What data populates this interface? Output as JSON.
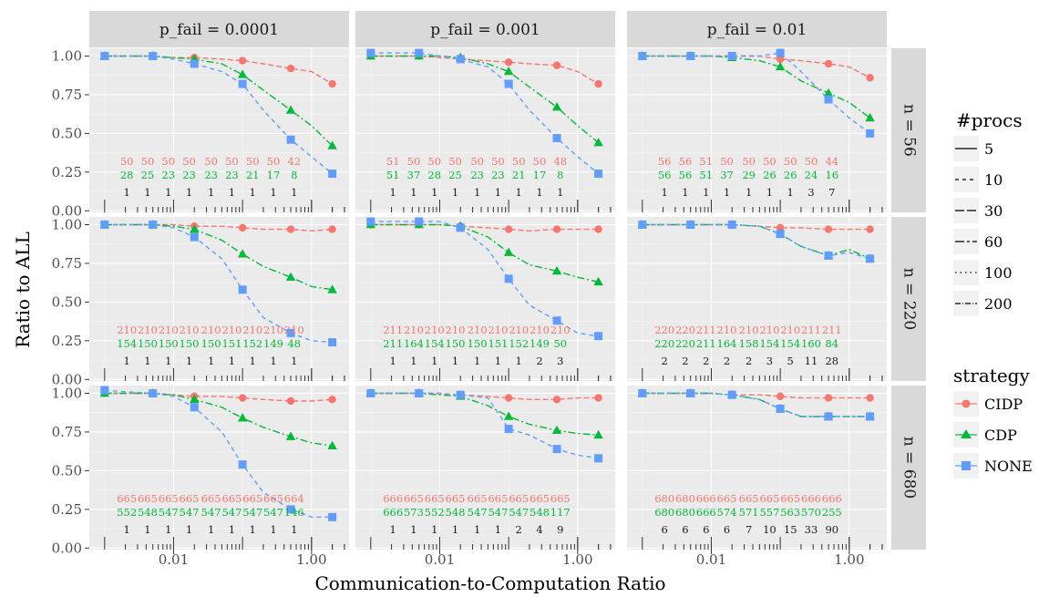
{
  "chart_data": {
    "type": "line",
    "title": "",
    "xlabel": "Communication-to-Computation Ratio",
    "ylabel": "Ratio to ALL",
    "x_scale": "log10",
    "x": [
      0.001,
      0.002,
      0.005,
      0.01,
      0.02,
      0.05,
      0.1,
      0.2,
      0.5,
      1,
      2
    ],
    "x_ticks": [
      {
        "value": 0.01,
        "label": "0.01"
      },
      {
        "value": 1,
        "label": "1.00"
      }
    ],
    "y_ticks": [
      "0.00",
      "0.25",
      "0.50",
      "0.75",
      "1.00"
    ],
    "ylim": [
      0,
      1.03
    ],
    "grid": true,
    "col_facets": [
      "p_fail = 0.0001",
      "p_fail = 0.001",
      "p_fail = 0.01"
    ],
    "row_facets": [
      "n = 56",
      "n = 220",
      "n = 680"
    ],
    "legend_procs": {
      "title": "#procs",
      "entries": [
        "5",
        "10",
        "30",
        "60",
        "100",
        "200"
      ]
    },
    "legend_strategy": {
      "title": "strategy",
      "entries": [
        {
          "name": "CIDP",
          "color": "#F8766D",
          "marker": "circle"
        },
        {
          "name": "CDP",
          "color": "#00BA38",
          "marker": "triangle"
        },
        {
          "name": "NONE",
          "color": "#619CFF",
          "marker": "square"
        }
      ]
    },
    "panels": [
      {
        "row": 0,
        "col": 0,
        "series": [
          {
            "name": "CIDP",
            "values": [
              1.0,
              1.0,
              1.0,
              0.99,
              0.99,
              0.98,
              0.97,
              0.95,
              0.92,
              0.9,
              0.82
            ]
          },
          {
            "name": "CDP",
            "values": [
              1.0,
              1.0,
              1.0,
              0.99,
              0.98,
              0.95,
              0.88,
              0.78,
              0.65,
              0.55,
              0.42
            ]
          },
          {
            "name": "NONE",
            "values": [
              1.0,
              1.0,
              1.0,
              0.98,
              0.95,
              0.9,
              0.82,
              0.65,
              0.46,
              0.35,
              0.24
            ]
          }
        ],
        "labels_cidp": [
          "50",
          "50",
          "50",
          "50",
          "50",
          "50",
          "50",
          "50",
          "42"
        ],
        "labels_cdp": [
          "28",
          "25",
          "23",
          "23",
          "23",
          "23",
          "21",
          "17",
          "8"
        ],
        "labels_none": [
          "1",
          "1",
          "1",
          "1",
          "1",
          "1",
          "1",
          "1",
          "1"
        ]
      },
      {
        "row": 0,
        "col": 1,
        "series": [
          {
            "name": "CIDP",
            "values": [
              1.0,
              1.0,
              1.0,
              0.99,
              0.98,
              0.97,
              0.96,
              0.95,
              0.94,
              0.9,
              0.82
            ]
          },
          {
            "name": "CDP",
            "values": [
              1.0,
              1.0,
              1.0,
              1.0,
              0.99,
              0.95,
              0.9,
              0.8,
              0.67,
              0.55,
              0.44
            ]
          },
          {
            "name": "NONE",
            "values": [
              1.02,
              1.02,
              1.02,
              1.0,
              0.98,
              0.93,
              0.82,
              0.65,
              0.47,
              0.35,
              0.24
            ]
          }
        ],
        "labels_cidp": [
          "51",
          "50",
          "50",
          "50",
          "50",
          "50",
          "50",
          "50",
          "48"
        ],
        "labels_cdp": [
          "51",
          "37",
          "28",
          "25",
          "23",
          "23",
          "21",
          "17",
          "8"
        ],
        "labels_none": [
          "1",
          "1",
          "1",
          "1",
          "1",
          "1",
          "1",
          "1",
          "1"
        ]
      },
      {
        "row": 0,
        "col": 2,
        "series": [
          {
            "name": "CIDP",
            "values": [
              1.0,
              1.0,
              1.0,
              1.0,
              1.0,
              1.0,
              0.98,
              0.97,
              0.95,
              0.93,
              0.86
            ]
          },
          {
            "name": "CDP",
            "values": [
              1.0,
              1.0,
              1.0,
              1.0,
              0.99,
              0.97,
              0.93,
              0.84,
              0.76,
              0.7,
              0.6
            ]
          },
          {
            "name": "NONE",
            "values": [
              1.0,
              1.0,
              1.0,
              1.0,
              1.0,
              1.0,
              1.02,
              0.9,
              0.72,
              0.6,
              0.5
            ]
          }
        ],
        "labels_cidp": [
          "56",
          "56",
          "51",
          "50",
          "50",
          "50",
          "50",
          "50",
          "44"
        ],
        "labels_cdp": [
          "56",
          "56",
          "51",
          "37",
          "29",
          "26",
          "26",
          "24",
          "16"
        ],
        "labels_none": [
          "1",
          "1",
          "1",
          "1",
          "1",
          "1",
          "1",
          "3",
          "7"
        ]
      },
      {
        "row": 1,
        "col": 0,
        "series": [
          {
            "name": "CIDP",
            "values": [
              1.0,
              1.0,
              1.0,
              1.0,
              0.99,
              0.99,
              0.98,
              0.97,
              0.97,
              0.96,
              0.97
            ]
          },
          {
            "name": "CDP",
            "values": [
              1.0,
              1.0,
              1.0,
              0.99,
              0.97,
              0.9,
              0.81,
              0.73,
              0.66,
              0.6,
              0.58
            ]
          },
          {
            "name": "NONE",
            "values": [
              1.0,
              1.0,
              1.0,
              0.98,
              0.92,
              0.78,
              0.58,
              0.4,
              0.3,
              0.25,
              0.24
            ]
          }
        ],
        "labels_cidp": [
          "210",
          "210",
          "210",
          "210",
          "210",
          "210",
          "210",
          "210",
          "210"
        ],
        "labels_cdp": [
          "154",
          "150",
          "150",
          "150",
          "150",
          "151",
          "152",
          "149",
          "48"
        ],
        "labels_none": [
          "1",
          "1",
          "1",
          "1",
          "1",
          "1",
          "1",
          "1",
          "1"
        ]
      },
      {
        "row": 1,
        "col": 1,
        "series": [
          {
            "name": "CIDP",
            "values": [
              1.0,
              1.0,
              1.0,
              1.0,
              0.99,
              0.98,
              0.97,
              0.96,
              0.97,
              0.97,
              0.97
            ]
          },
          {
            "name": "CDP",
            "values": [
              1.0,
              1.0,
              1.0,
              1.0,
              0.99,
              0.92,
              0.82,
              0.74,
              0.7,
              0.66,
              0.63
            ]
          },
          {
            "name": "NONE",
            "values": [
              1.02,
              1.02,
              1.02,
              1.02,
              0.98,
              0.84,
              0.65,
              0.48,
              0.38,
              0.3,
              0.28
            ]
          }
        ],
        "labels_cidp": [
          "211",
          "210",
          "210",
          "210",
          "210",
          "210",
          "210",
          "210",
          "210"
        ],
        "labels_cdp": [
          "211",
          "164",
          "154",
          "150",
          "150",
          "151",
          "152",
          "149",
          "50"
        ],
        "labels_none": [
          "1",
          "1",
          "1",
          "1",
          "1",
          "1",
          "1",
          "2",
          "3"
        ]
      },
      {
        "row": 1,
        "col": 2,
        "series": [
          {
            "name": "CIDP",
            "values": [
              1.0,
              1.0,
              1.0,
              1.0,
              1.0,
              0.99,
              0.98,
              0.98,
              0.97,
              0.97,
              0.97
            ]
          },
          {
            "name": "CDP",
            "values": [
              1.0,
              1.0,
              1.0,
              1.0,
              1.0,
              0.99,
              0.94,
              0.86,
              0.8,
              0.84,
              0.78
            ]
          },
          {
            "name": "NONE",
            "values": [
              1.0,
              1.0,
              1.0,
              1.0,
              1.0,
              0.99,
              0.94,
              0.86,
              0.8,
              0.82,
              0.78
            ]
          }
        ],
        "labels_cidp": [
          "220",
          "220",
          "211",
          "210",
          "210",
          "210",
          "210",
          "211",
          "211"
        ],
        "labels_cdp": [
          "220",
          "220",
          "211",
          "164",
          "158",
          "154",
          "154",
          "160",
          "84"
        ],
        "labels_none": [
          "2",
          "2",
          "2",
          "2",
          "2",
          "3",
          "5",
          "11",
          "28"
        ]
      },
      {
        "row": 2,
        "col": 0,
        "series": [
          {
            "name": "CIDP",
            "values": [
              1.0,
              1.0,
              1.0,
              0.99,
              0.98,
              0.98,
              0.97,
              0.96,
              0.95,
              0.95,
              0.96
            ]
          },
          {
            "name": "CDP",
            "values": [
              1.0,
              1.0,
              1.0,
              0.99,
              0.96,
              0.91,
              0.84,
              0.78,
              0.72,
              0.68,
              0.66
            ]
          },
          {
            "name": "NONE",
            "values": [
              1.02,
              1.01,
              1.0,
              0.98,
              0.91,
              0.75,
              0.54,
              0.36,
              0.25,
              0.2,
              0.2
            ]
          }
        ],
        "labels_cidp": [
          "665",
          "665",
          "665",
          "665",
          "665",
          "665",
          "665",
          "665",
          "664"
        ],
        "labels_cdp": [
          "552",
          "548",
          "547",
          "547",
          "547",
          "547",
          "547",
          "547",
          "146"
        ],
        "labels_none": [
          "1",
          "1",
          "1",
          "1",
          "1",
          "1",
          "1",
          "1",
          "1"
        ]
      },
      {
        "row": 2,
        "col": 1,
        "series": [
          {
            "name": "CIDP",
            "values": [
              1.0,
              1.0,
              1.0,
              1.0,
              0.99,
              0.98,
              0.97,
              0.96,
              0.96,
              0.97,
              0.97
            ]
          },
          {
            "name": "CDP",
            "values": [
              1.0,
              1.0,
              1.0,
              0.99,
              0.98,
              0.92,
              0.85,
              0.8,
              0.76,
              0.74,
              0.73
            ]
          },
          {
            "name": "NONE",
            "values": [
              1.0,
              1.0,
              1.0,
              1.0,
              0.99,
              0.97,
              0.77,
              0.73,
              0.64,
              0.6,
              0.58
            ]
          }
        ],
        "labels_cidp": [
          "666",
          "665",
          "665",
          "665",
          "665",
          "665",
          "665",
          "665",
          "665"
        ],
        "labels_cdp": [
          "666",
          "573",
          "552",
          "548",
          "547",
          "547",
          "547",
          "548",
          "117"
        ],
        "labels_none": [
          "1",
          "1",
          "1",
          "1",
          "1",
          "1",
          "2",
          "4",
          "9"
        ]
      },
      {
        "row": 2,
        "col": 2,
        "series": [
          {
            "name": "CIDP",
            "values": [
              1.0,
              1.0,
              1.0,
              1.0,
              0.99,
              0.99,
              0.98,
              0.97,
              0.97,
              0.97,
              0.97
            ]
          },
          {
            "name": "CDP",
            "values": [
              1.0,
              1.0,
              1.0,
              1.0,
              0.99,
              0.96,
              0.9,
              0.85,
              0.85,
              0.85,
              0.85
            ]
          },
          {
            "name": "NONE",
            "values": [
              1.0,
              1.0,
              1.0,
              1.0,
              0.99,
              0.96,
              0.9,
              0.85,
              0.85,
              0.85,
              0.85
            ]
          }
        ],
        "labels_cidp": [
          "680",
          "680",
          "666",
          "665",
          "665",
          "665",
          "665",
          "666",
          "666"
        ],
        "labels_cdp": [
          "680",
          "680",
          "666",
          "574",
          "571",
          "557",
          "563",
          "570",
          "255"
        ],
        "labels_none": [
          "6",
          "6",
          "6",
          "6",
          "7",
          "10",
          "15",
          "33",
          "90"
        ]
      }
    ]
  }
}
